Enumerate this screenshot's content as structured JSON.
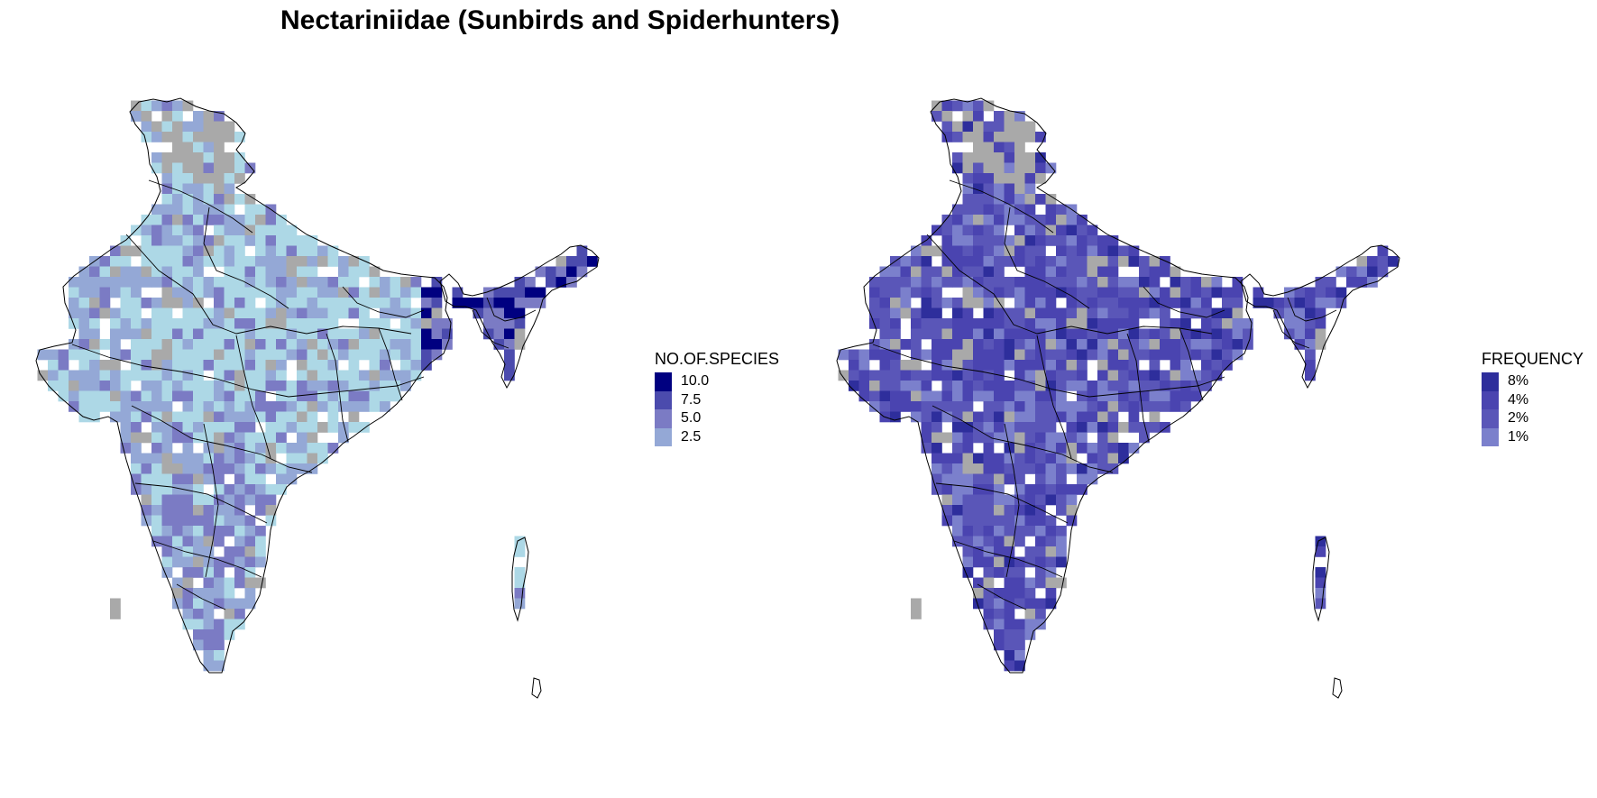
{
  "title": "Nectariniidae (Sunbirds and Spiderhunters)",
  "colors": {
    "no_data_gray": "#a9a9a9",
    "boundary": "#000000",
    "species_low": "#add8e6",
    "species_scale": [
      "#000080",
      "#4b4bad",
      "#7b7bc4",
      "#94a8d6"
    ],
    "frequency_scale": [
      "#2e2e9c",
      "#4a44b0",
      "#5a56b8",
      "#7b80cc"
    ]
  },
  "left_panel": {
    "legend": {
      "title": "NO.OF.SPECIES",
      "items": [
        {
          "label": "10.0",
          "color": "#000080"
        },
        {
          "label": "7.5",
          "color": "#4b4bad"
        },
        {
          "label": "5.0",
          "color": "#7b7bc4"
        },
        {
          "label": "2.5",
          "color": "#94a8d6"
        }
      ]
    }
  },
  "right_panel": {
    "legend": {
      "title": "FREQUENCY",
      "items": [
        {
          "label": "8%",
          "color": "#2e2e9c"
        },
        {
          "label": "4%",
          "color": "#4a44b0"
        },
        {
          "label": "2%",
          "color": "#5a56b8"
        },
        {
          "label": "1%",
          "color": "#7b80cc"
        }
      ]
    }
  }
}
